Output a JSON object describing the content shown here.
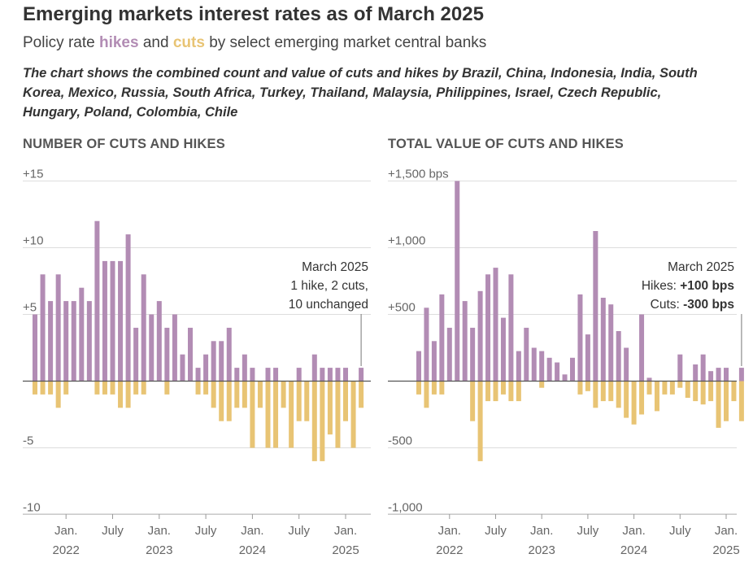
{
  "title": "Emerging markets interest rates as of March 2025",
  "subtitle": {
    "prefix": "Policy rate ",
    "hikes": "hikes",
    "middle": " and ",
    "cuts": "cuts",
    "suffix": " by select emerging market central banks"
  },
  "description": "The chart shows the combined count and value of cuts and hikes by Brazil, China, Indonesia, India, South Korea, Mexico, Russia, South Africa, Turkey, Thailand, Malaysia, Philippines, Israel, Czech Republic, Hungary, Poland, Colombia, Chile",
  "colors": {
    "hikes": "#b28cb4",
    "cuts": "#e8c474",
    "grid": "#dddddd",
    "zero": "#555555",
    "text": "#333333"
  },
  "chart_data": [
    {
      "type": "bar",
      "title": "NUMBER OF CUTS AND HIKES",
      "ylim": [
        -10,
        15
      ],
      "yticks": [
        {
          "v": 15,
          "label": "+15"
        },
        {
          "v": 10,
          "label": "+10"
        },
        {
          "v": 5,
          "label": "+5"
        },
        {
          "v": -5,
          "label": "-5"
        },
        {
          "v": -10,
          "label": "-10"
        }
      ],
      "xticks": [
        {
          "i": 4,
          "line1": "Jan.",
          "line2": "2022"
        },
        {
          "i": 10,
          "line1": "July",
          "line2": ""
        },
        {
          "i": 16,
          "line1": "Jan.",
          "line2": "2023"
        },
        {
          "i": 22,
          "line1": "July",
          "line2": ""
        },
        {
          "i": 28,
          "line1": "Jan.",
          "line2": "2024"
        },
        {
          "i": 34,
          "line1": "July",
          "line2": ""
        },
        {
          "i": 40,
          "line1": "Jan.",
          "line2": "2025"
        }
      ],
      "series": [
        {
          "name": "hikes",
          "values": [
            5,
            8,
            6,
            8,
            6,
            6,
            7,
            6,
            12,
            9,
            9,
            9,
            11,
            4,
            8,
            5,
            6,
            4,
            5,
            2,
            4,
            1,
            2,
            3,
            3,
            4,
            1,
            2,
            1,
            0,
            1,
            1,
            0,
            0,
            1,
            0,
            2,
            1,
            1,
            1,
            1,
            0,
            1
          ]
        },
        {
          "name": "cuts",
          "values": [
            -1,
            -1,
            -1,
            -2,
            -1,
            0,
            0,
            0,
            -1,
            -1,
            -1,
            -2,
            -2,
            -1,
            -1,
            0,
            0,
            -1,
            0,
            0,
            0,
            -1,
            -1,
            -2,
            -3,
            -3,
            -2,
            -2,
            -5,
            -2,
            -5,
            -5,
            -2,
            -5,
            -3,
            -3,
            -6,
            -6,
            -4,
            -5,
            -3,
            -5,
            -2
          ]
        }
      ],
      "annotation": {
        "lines": [
          "March 2025",
          "1 hike, 2 cuts,",
          "10 unchanged"
        ]
      }
    },
    {
      "type": "bar",
      "title": "TOTAL VALUE OF CUTS AND HIKES",
      "ylim": [
        -1000,
        1500
      ],
      "yticks": [
        {
          "v": 1500,
          "label": "+1,500 bps"
        },
        {
          "v": 1000,
          "label": "+1,000"
        },
        {
          "v": 500,
          "label": "+500"
        },
        {
          "v": -500,
          "label": "-500"
        },
        {
          "v": -1000,
          "label": "-1,000"
        }
      ],
      "xticks": [
        {
          "i": 4,
          "line1": "Jan.",
          "line2": "2022"
        },
        {
          "i": 10,
          "line1": "July",
          "line2": ""
        },
        {
          "i": 16,
          "line1": "Jan.",
          "line2": "2023"
        },
        {
          "i": 22,
          "line1": "July",
          "line2": ""
        },
        {
          "i": 28,
          "line1": "Jan.",
          "line2": "2024"
        },
        {
          "i": 34,
          "line1": "July",
          "line2": ""
        },
        {
          "i": 40,
          "line1": "Jan.",
          "line2": "2025"
        }
      ],
      "series": [
        {
          "name": "hikes",
          "values": [
            225,
            550,
            300,
            650,
            400,
            1500,
            600,
            400,
            675,
            800,
            850,
            475,
            800,
            225,
            400,
            250,
            225,
            175,
            140,
            50,
            175,
            650,
            350,
            1125,
            625,
            575,
            375,
            250,
            0,
            500,
            25,
            0,
            0,
            0,
            200,
            0,
            125,
            200,
            75,
            100,
            100,
            0,
            100
          ]
        },
        {
          "name": "cuts",
          "values": [
            -100,
            -200,
            -100,
            -100,
            0,
            0,
            0,
            -300,
            -600,
            -150,
            -150,
            -100,
            -150,
            -150,
            0,
            0,
            -50,
            0,
            0,
            0,
            0,
            -100,
            -75,
            -200,
            -150,
            -150,
            -200,
            -275,
            -325,
            -250,
            -100,
            -225,
            -100,
            -100,
            -50,
            -125,
            -150,
            -175,
            -150,
            -350,
            -300,
            -150,
            -300
          ]
        }
      ],
      "annotation": {
        "lines": [
          "March 2025",
          "Hikes: ",
          "+100 bps",
          "Cuts: ",
          "-300 bps"
        ]
      }
    }
  ]
}
